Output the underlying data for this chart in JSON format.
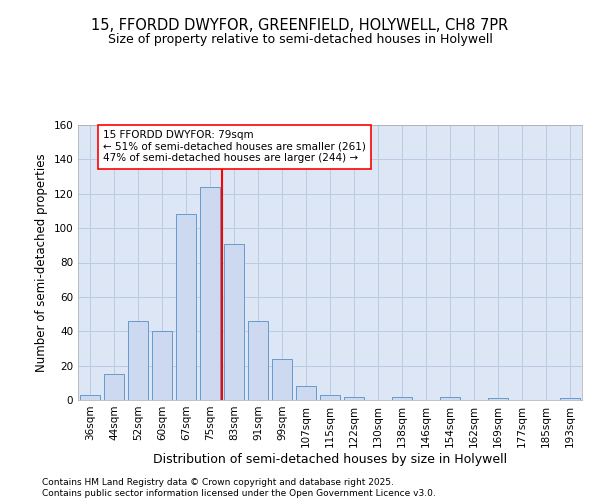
{
  "title1": "15, FFORDD DWYFOR, GREENFIELD, HOLYWELL, CH8 7PR",
  "title2": "Size of property relative to semi-detached houses in Holywell",
  "xlabel": "Distribution of semi-detached houses by size in Holywell",
  "ylabel": "Number of semi-detached properties",
  "bar_categories": [
    "36sqm",
    "44sqm",
    "52sqm",
    "60sqm",
    "67sqm",
    "75sqm",
    "83sqm",
    "91sqm",
    "99sqm",
    "107sqm",
    "115sqm",
    "122sqm",
    "130sqm",
    "138sqm",
    "146sqm",
    "154sqm",
    "162sqm",
    "169sqm",
    "177sqm",
    "185sqm",
    "193sqm"
  ],
  "bar_values": [
    3,
    15,
    46,
    40,
    108,
    124,
    91,
    46,
    24,
    8,
    3,
    2,
    0,
    2,
    0,
    2,
    0,
    1,
    0,
    0,
    1
  ],
  "bar_color": "#ccd9f0",
  "bar_edge_color": "#6699cc",
  "vline_x": 5.5,
  "vline_color": "red",
  "ann_line1": "15 FFORDD DWYFOR: 79sqm",
  "ann_line2": "← 51% of semi-detached houses are smaller (261)",
  "ann_line3": "47% of semi-detached houses are larger (244) →",
  "ylim": [
    0,
    160
  ],
  "yticks": [
    0,
    20,
    40,
    60,
    80,
    100,
    120,
    140,
    160
  ],
  "grid_color": "#b8cce4",
  "bg_color": "#dce6f5",
  "footer_text": "Contains HM Land Registry data © Crown copyright and database right 2025.\nContains public sector information licensed under the Open Government Licence v3.0.",
  "title1_fontsize": 10.5,
  "title2_fontsize": 9,
  "xlabel_fontsize": 9,
  "ylabel_fontsize": 8.5,
  "tick_fontsize": 7.5,
  "footer_fontsize": 6.5
}
